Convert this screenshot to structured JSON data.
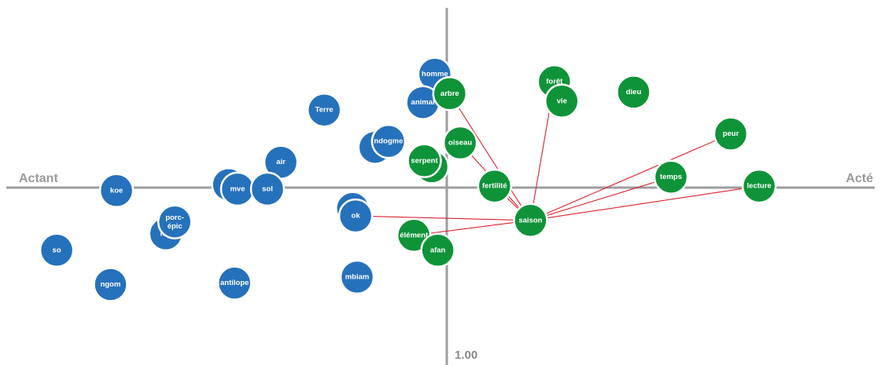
{
  "chart_data": {
    "type": "scatter",
    "title": "",
    "axis_labels": {
      "left": "Actant",
      "right": "Acté",
      "scale": "1.00"
    },
    "xlim": [
      -2.9,
      2.9
    ],
    "ylim": [
      -1.18,
      1.18
    ],
    "colors": {
      "blue": "#2671bb",
      "green": "#0f9339",
      "link": "#d9232d",
      "axis": "#9e9e9e"
    },
    "series": [
      {
        "group": "blue",
        "points": [
          {
            "label": "homme",
            "x": -0.08,
            "y": 0.76
          },
          {
            "label": "animal",
            "x": -0.16,
            "y": 0.57
          },
          {
            "label": "Terre",
            "x": -0.82,
            "y": 0.52
          },
          {
            "label": "e",
            "x": -0.48,
            "y": 0.27
          },
          {
            "label": "ndogme",
            "x": -0.39,
            "y": 0.31
          },
          {
            "label": "air",
            "x": -1.11,
            "y": 0.17
          },
          {
            "label": "n",
            "x": -1.46,
            "y": 0.02
          },
          {
            "label": "mve",
            "x": -1.4,
            "y": -0.01
          },
          {
            "label": "sol",
            "x": -1.2,
            "y": -0.01
          },
          {
            "label": "koe",
            "x": -2.21,
            "y": -0.02
          },
          {
            "label": "",
            "x": -0.63,
            "y": -0.14
          },
          {
            "label": "ok",
            "x": -0.61,
            "y": -0.19
          },
          {
            "label": "mb",
            "x": -1.88,
            "y": -0.31
          },
          {
            "label": "porc-\népic",
            "x": -1.82,
            "y": -0.23
          },
          {
            "label": "so",
            "x": -2.61,
            "y": -0.42
          },
          {
            "label": "ngom",
            "x": -2.25,
            "y": -0.65
          },
          {
            "label": "antilope",
            "x": -1.42,
            "y": -0.64
          },
          {
            "label": "mbiam",
            "x": -0.6,
            "y": -0.6
          }
        ]
      },
      {
        "group": "green",
        "points": [
          {
            "label": "arbre",
            "x": 0.02,
            "y": 0.63
          },
          {
            "label": "forêt",
            "x": 0.72,
            "y": 0.71
          },
          {
            "label": "vie",
            "x": 0.77,
            "y": 0.58
          },
          {
            "label": "dieu",
            "x": 1.25,
            "y": 0.64
          },
          {
            "label": "oiseau",
            "x": 0.09,
            "y": 0.3
          },
          {
            "label": "",
            "x": -0.1,
            "y": 0.14
          },
          {
            "label": "serpent",
            "x": -0.15,
            "y": 0.18
          },
          {
            "label": "fertilité",
            "x": 0.32,
            "y": 0.01
          },
          {
            "label": "peur",
            "x": 1.9,
            "y": 0.36
          },
          {
            "label": "temps",
            "x": 1.5,
            "y": 0.07
          },
          {
            "label": "lecture",
            "x": 2.09,
            "y": 0.01
          },
          {
            "label": "élément",
            "x": -0.22,
            "y": -0.32
          },
          {
            "label": "afan",
            "x": -0.06,
            "y": -0.42
          }
        ]
      }
    ],
    "highlight": {
      "label": "saison",
      "x": 0.56,
      "y": -0.22,
      "color": "#0f9339",
      "text_color": "#d9232d"
    },
    "links_from_highlight": [
      "arbre",
      "oiseau",
      "fertilité",
      "forêt",
      "peur",
      "temps",
      "lecture",
      "ok",
      "élément"
    ]
  }
}
